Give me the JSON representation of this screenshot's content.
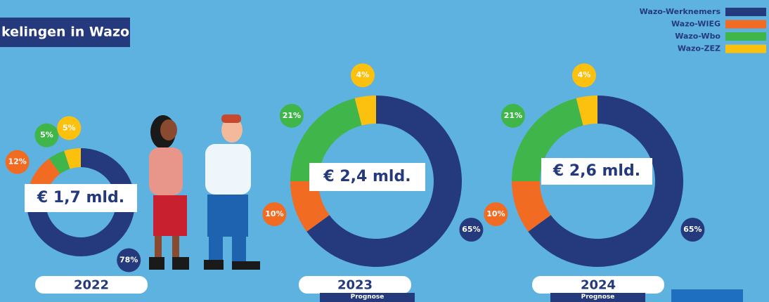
{
  "header": {
    "title": "kelingen in Wazo"
  },
  "chart_data": [
    {
      "type": "donut",
      "title": "2022",
      "annotation": "€ 1,7 mld.",
      "categories": [
        "Wazo-Werknemers",
        "Wazo-WIEG",
        "Wazo-Wbo",
        "Wazo-ZEZ"
      ],
      "values": [
        78,
        12,
        5,
        5
      ],
      "value_labels": [
        "78%",
        "12%",
        "5%",
        "5%"
      ],
      "colors": [
        "#253a7c",
        "#f26b22",
        "#3fb54a",
        "#fcc10f"
      ]
    },
    {
      "type": "donut",
      "title": "2023",
      "subtitle": "Prognose",
      "annotation": "€ 2,4 mld.",
      "categories": [
        "Wazo-Werknemers",
        "Wazo-WIEG",
        "Wazo-Wbo",
        "Wazo-ZEZ"
      ],
      "values": [
        65,
        10,
        21,
        4
      ],
      "value_labels": [
        "65%",
        "10%",
        "21%",
        "4%"
      ],
      "colors": [
        "#253a7c",
        "#f26b22",
        "#3fb54a",
        "#fcc10f"
      ]
    },
    {
      "type": "donut",
      "title": "2024",
      "subtitle": "Prognose",
      "annotation": "€ 2,6 mld.",
      "categories": [
        "Wazo-Werknemers",
        "Wazo-WIEG",
        "Wazo-Wbo",
        "Wazo-ZEZ"
      ],
      "values": [
        65,
        10,
        21,
        4
      ],
      "value_labels": [
        "65%",
        "10%",
        "21%",
        "4%"
      ],
      "colors": [
        "#253a7c",
        "#f26b22",
        "#3fb54a",
        "#fcc10f"
      ]
    }
  ]
}
